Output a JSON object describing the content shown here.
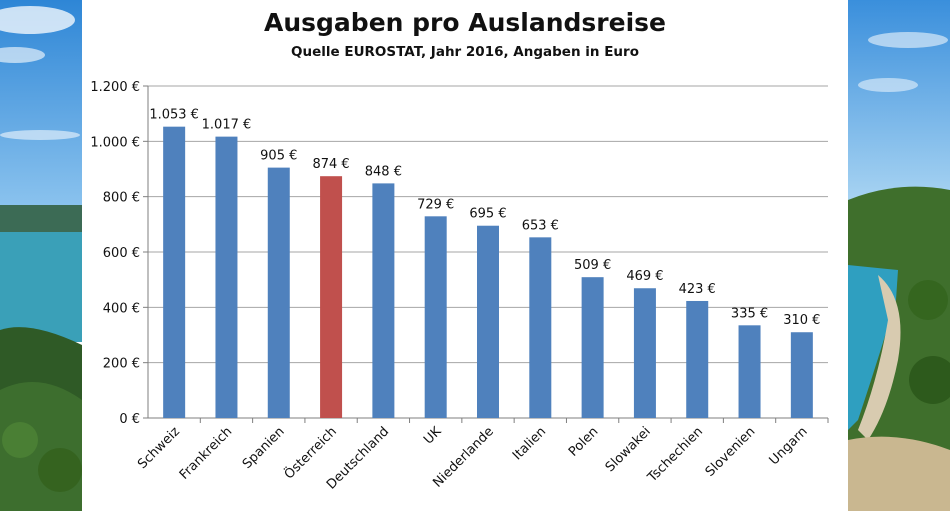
{
  "chart_data": {
    "type": "bar",
    "title": "Ausgaben pro Auslandsreise",
    "subtitle": "Quelle EUROSTAT,  Jahr 2016, Angaben  in Euro",
    "categories": [
      "Schweiz",
      "Frankreich",
      "Spanien",
      "Österreich",
      "Deutschland",
      "UK",
      "Niederlande",
      "Italien",
      "Polen",
      "Slowakei",
      "Tschechien",
      "Slovenien",
      "Ungarn"
    ],
    "values": [
      1053,
      1017,
      905,
      874,
      848,
      729,
      695,
      653,
      509,
      469,
      423,
      335,
      310
    ],
    "data_labels": [
      "1.053 €",
      "1.017 €",
      "905 €",
      "874 €",
      "848 €",
      "729 €",
      "695 €",
      "653 €",
      "509 €",
      "469 €",
      "423 €",
      "335 €",
      "310 €"
    ],
    "ylim": [
      0,
      1200
    ],
    "yticks": [
      0,
      200,
      400,
      600,
      800,
      1000,
      1200
    ],
    "ytick_labels": [
      "0 €",
      "200 €",
      "400 €",
      "600 €",
      "800 €",
      "1.000 €",
      "1.200 €"
    ],
    "grid": true,
    "colors": {
      "bar": "#4f81bd",
      "highlight": "#c0504d",
      "highlight_index": 3
    }
  }
}
